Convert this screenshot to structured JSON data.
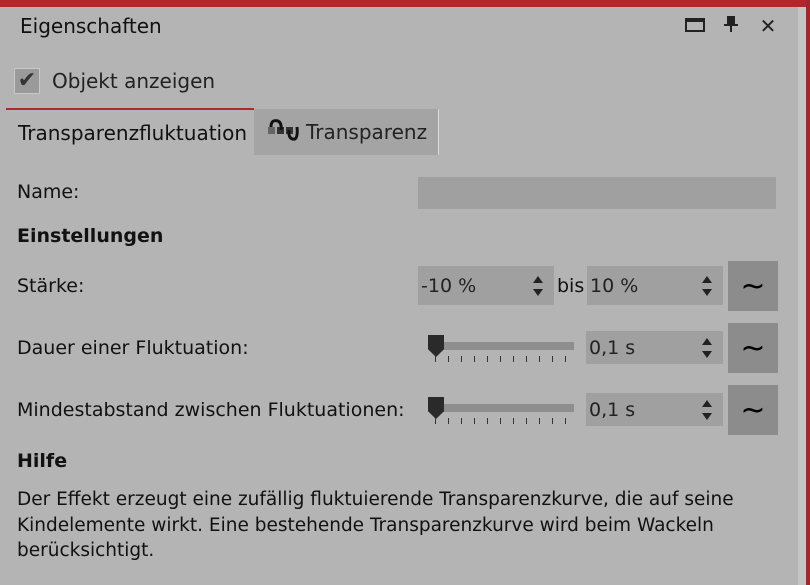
{
  "panel": {
    "title": "Eigenschaften",
    "icons": [
      "maximize-icon",
      "pin-icon",
      "close-icon"
    ]
  },
  "show_object": {
    "label": "Objekt anzeigen",
    "checked": true
  },
  "tabs": [
    {
      "label": "Transparenzfluktuation",
      "active": true
    },
    {
      "label": "Transparenz",
      "icon": "transparency-curve-icon",
      "active": false
    }
  ],
  "name": {
    "label": "Name:",
    "value": ""
  },
  "settings": {
    "heading": "Einstellungen",
    "strength": {
      "label": "Stärke:",
      "from": "-10 %",
      "to_label": "bis",
      "to": "10 %"
    },
    "duration": {
      "label": "Dauer einer Fluktuation:",
      "value": "0,1 s",
      "slider": 0
    },
    "min_gap": {
      "label": "Mindestabstand zwischen Fluktuationen:",
      "value": "0,1 s",
      "slider": 0
    },
    "wave_icon": "~"
  },
  "help": {
    "heading": "Hilfe",
    "text": "Der Effekt erzeugt eine zufällig fluktuierende Transparenzkurve, die auf seine Kindelemente wirkt. Eine bestehende Transparenzkurve wird beim Wackeln berücksichtigt."
  },
  "colors": {
    "accent": "#b0282b",
    "background": "#b4b4b4"
  }
}
